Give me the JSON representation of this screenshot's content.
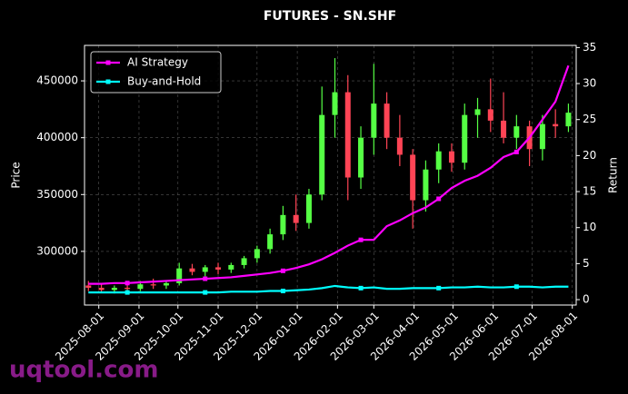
{
  "chart_data": {
    "type": "candlestick",
    "title": "FUTURES - SN.SHF",
    "ylabel": "Price",
    "y2label": "Return",
    "watermark": "uqtool.com",
    "grid": true,
    "legend": "upper left",
    "x": [
      "2025-07-24",
      "2025-08-03",
      "2025-08-13",
      "2025-08-23",
      "2025-09-02",
      "2025-09-12",
      "2025-09-22",
      "2025-10-02",
      "2025-10-12",
      "2025-10-22",
      "2025-11-01",
      "2025-11-11",
      "2025-11-21",
      "2025-12-01",
      "2025-12-11",
      "2025-12-21",
      "2025-12-31",
      "2026-01-10",
      "2026-01-20",
      "2026-01-30",
      "2026-02-09",
      "2026-02-19",
      "2026-03-01",
      "2026-03-11",
      "2026-03-21",
      "2026-03-31",
      "2026-04-10",
      "2026-04-20",
      "2026-04-30",
      "2026-05-10",
      "2026-05-20",
      "2026-05-30",
      "2026-06-09",
      "2026-06-19",
      "2026-06-29",
      "2026-07-09",
      "2026-07-19",
      "2026-07-29"
    ],
    "candles": {
      "up_color": "#55ff44",
      "down_color": "#ff4455",
      "open": [
        270000,
        268000,
        266000,
        268000,
        267000,
        271000,
        270000,
        272000,
        285000,
        282000,
        286000,
        284000,
        288000,
        294000,
        302000,
        315000,
        332000,
        325000,
        350000,
        420000,
        440000,
        365000,
        400000,
        430000,
        400000,
        385000,
        345000,
        372000,
        388000,
        378000,
        420000,
        425000,
        415000,
        400000,
        410000,
        390000,
        412000,
        410000
      ],
      "high": [
        274000,
        271000,
        270000,
        272000,
        274000,
        276000,
        274000,
        290000,
        289000,
        288000,
        290000,
        290000,
        296000,
        305000,
        320000,
        340000,
        350000,
        355000,
        445000,
        470000,
        455000,
        410000,
        465000,
        440000,
        420000,
        390000,
        380000,
        395000,
        395000,
        430000,
        435000,
        452000,
        440000,
        420000,
        415000,
        420000,
        425000,
        430000
      ],
      "low": [
        265000,
        264000,
        263000,
        265000,
        265000,
        267000,
        267000,
        270000,
        279000,
        278000,
        280000,
        281000,
        285000,
        290000,
        298000,
        310000,
        318000,
        320000,
        345000,
        400000,
        345000,
        355000,
        385000,
        390000,
        375000,
        320000,
        335000,
        360000,
        370000,
        372000,
        400000,
        405000,
        395000,
        390000,
        375000,
        380000,
        400000,
        405000
      ],
      "close": [
        268000,
        266000,
        268000,
        267000,
        271000,
        270000,
        272000,
        285000,
        282000,
        286000,
        284000,
        288000,
        294000,
        302000,
        315000,
        332000,
        325000,
        350000,
        420000,
        440000,
        365000,
        400000,
        430000,
        400000,
        385000,
        345000,
        372000,
        388000,
        378000,
        420000,
        425000,
        415000,
        400000,
        410000,
        390000,
        412000,
        410000,
        422000
      ]
    },
    "series": [
      {
        "name": "AI Strategy",
        "color": "#ff00ff",
        "axis": "y2",
        "values": [
          2.2,
          2.2,
          2.3,
          2.3,
          2.4,
          2.5,
          2.6,
          2.7,
          2.8,
          2.9,
          3.0,
          3.1,
          3.3,
          3.5,
          3.7,
          4.0,
          4.4,
          4.9,
          5.6,
          6.5,
          7.5,
          8.3,
          8.3,
          10.2,
          11.0,
          12.0,
          12.8,
          14.0,
          15.5,
          16.5,
          17.2,
          18.3,
          19.8,
          20.5,
          22.5,
          25.0,
          27.5,
          32.5
        ]
      },
      {
        "name": "Buy-and-Hold",
        "color": "#00ffff",
        "axis": "y2",
        "values": [
          1.0,
          1.0,
          1.0,
          1.0,
          1.0,
          1.0,
          1.0,
          1.0,
          1.0,
          1.0,
          1.0,
          1.1,
          1.1,
          1.1,
          1.2,
          1.2,
          1.3,
          1.4,
          1.6,
          1.9,
          1.7,
          1.6,
          1.7,
          1.5,
          1.5,
          1.6,
          1.6,
          1.6,
          1.7,
          1.7,
          1.8,
          1.7,
          1.7,
          1.8,
          1.8,
          1.7,
          1.8,
          1.8
        ]
      }
    ],
    "xlim": [
      "2025-07-21",
      "2026-08-04"
    ],
    "xticks": [
      "2025-08-01",
      "2025-09-01",
      "2025-10-01",
      "2025-11-01",
      "2025-12-01",
      "2026-01-01",
      "2026-02-01",
      "2026-03-01",
      "2026-04-01",
      "2026-05-01",
      "2026-06-01",
      "2026-07-01",
      "2026-08-01"
    ],
    "ylim": [
      252800,
      481200
    ],
    "yticks": [
      300000,
      350000,
      400000,
      450000
    ],
    "y2lim": [
      -0.75,
      35.3
    ],
    "y2ticks": [
      0,
      5,
      10,
      15,
      20,
      25,
      30,
      35
    ]
  }
}
